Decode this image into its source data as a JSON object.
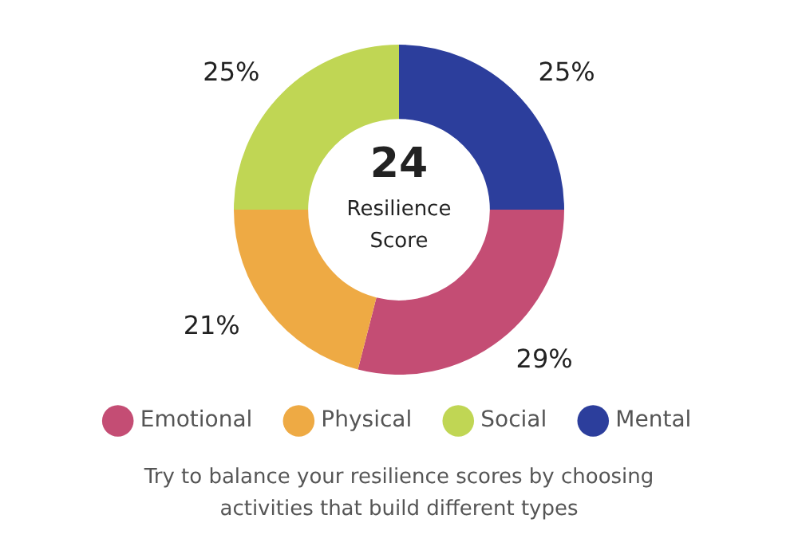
{
  "chart_data": {
    "type": "donut",
    "title": "24",
    "subtitle": "Resilience Score",
    "categories": [
      "Emotional",
      "Physical",
      "Social",
      "Mental"
    ],
    "values": [
      29,
      21,
      25,
      25
    ],
    "colors": [
      "#c44d74",
      "#eeaa44",
      "#c0d654",
      "#2c3e9c"
    ],
    "value_labels": [
      "29%",
      "21%",
      "25%",
      "25%"
    ],
    "legend": "bottom",
    "annotations": [
      "Try to balance your resilience scores by choosing activities that build different types"
    ]
  }
}
